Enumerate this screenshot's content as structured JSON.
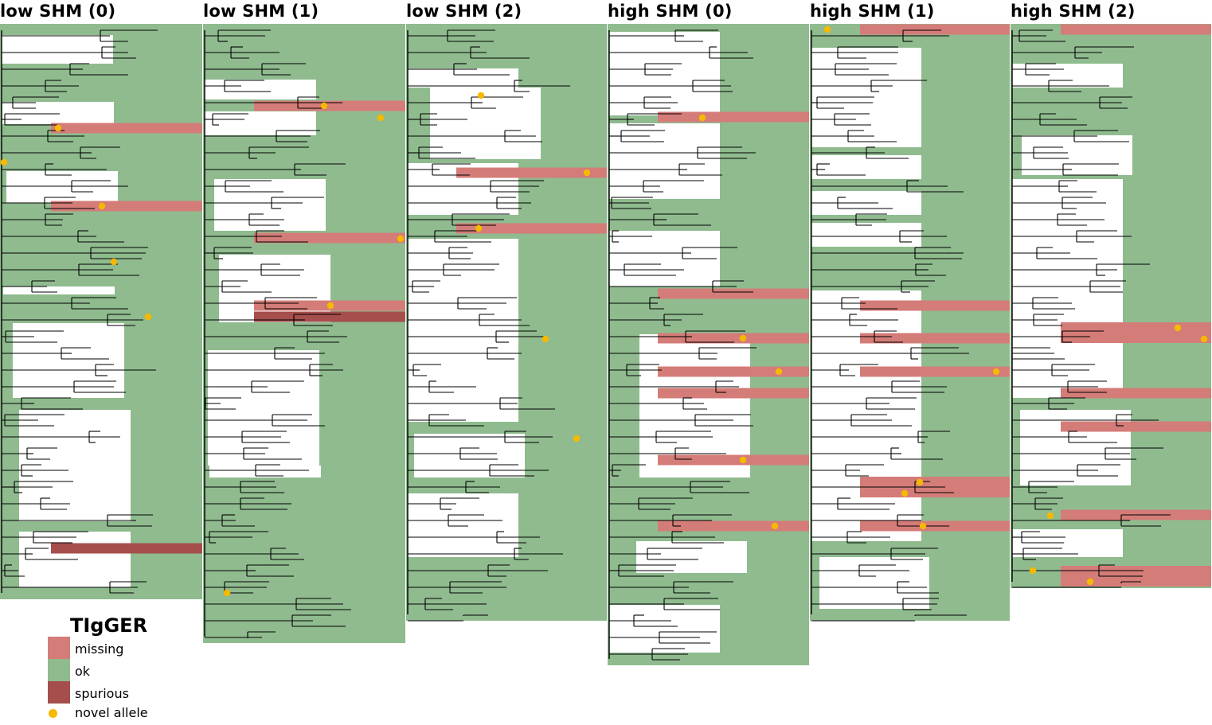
{
  "colors": {
    "missing": "#d47c78",
    "ok": "#8fbb8f",
    "spurious": "#a54e4c",
    "novel_allele": "#f7b800",
    "branch": "#000000"
  },
  "panels": [
    {
      "title": "low SHM (0)",
      "width": 254,
      "bottom": 753
    },
    {
      "title": "low SHM (1)",
      "width": 254,
      "bottom": 808
    },
    {
      "title": "low SHM (2)",
      "width": 252,
      "bottom": 780
    },
    {
      "title": "high SHM (0)",
      "width": 253,
      "bottom": 836
    },
    {
      "title": "high SHM (1)",
      "width": 251,
      "bottom": 780
    },
    {
      "title": "high SHM (2)",
      "width": 252,
      "bottom": 739
    }
  ],
  "legend": {
    "title": "TIgGER",
    "items": [
      {
        "label": "missing",
        "icon": "missing-swatch"
      },
      {
        "label": "ok",
        "icon": "ok-swatch"
      },
      {
        "label": "spurious",
        "icon": "spurious-swatch"
      },
      {
        "label": "novel allele",
        "icon": "novel-allele-dot"
      }
    ]
  }
}
